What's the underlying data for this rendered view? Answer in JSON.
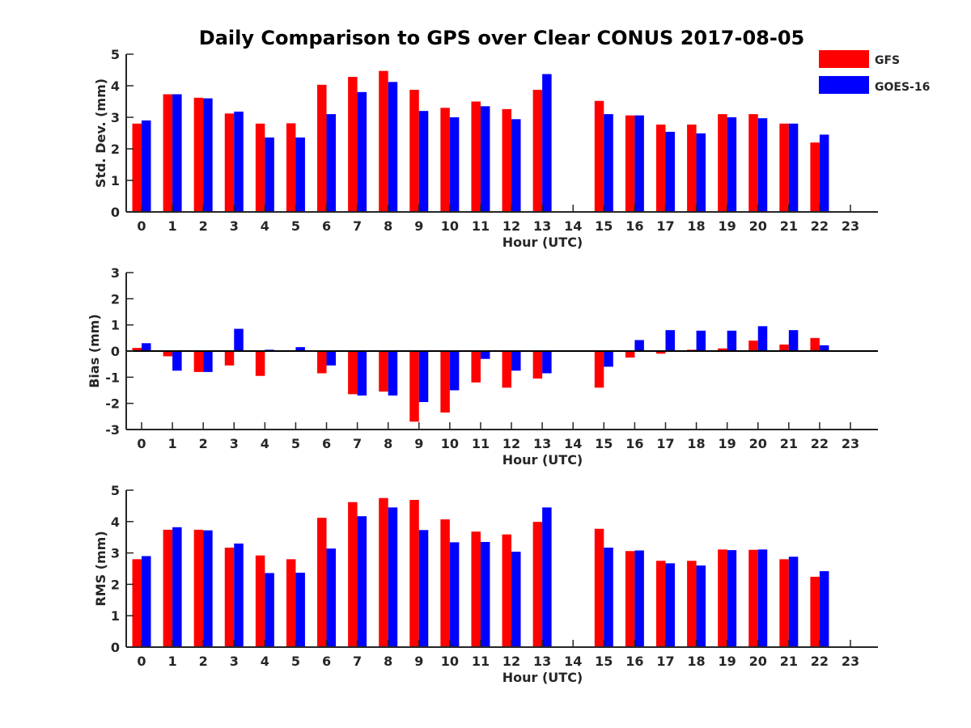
{
  "title": "Daily Comparison to GPS over Clear CONUS 2017-08-05",
  "legend": [
    {
      "label": "GFS",
      "color": "#ff0000"
    },
    {
      "label": "GOES-16",
      "color": "#0000ff"
    }
  ],
  "chart_data": [
    {
      "type": "bar",
      "xlabel": "Hour (UTC)",
      "ylabel": "Std. Dev. (mm)",
      "ylim": [
        0,
        5
      ],
      "yticks": [
        "0",
        "1",
        "2",
        "3",
        "4",
        "5"
      ],
      "categories": [
        "0",
        "1",
        "2",
        "3",
        "4",
        "5",
        "6",
        "7",
        "8",
        "9",
        "10",
        "11",
        "12",
        "13",
        "14",
        "15",
        "16",
        "17",
        "18",
        "19",
        "20",
        "21",
        "22",
        "23"
      ],
      "series": [
        {
          "name": "GFS",
          "color": "#ff0000",
          "values": [
            2.8,
            3.73,
            3.62,
            3.12,
            2.8,
            2.81,
            4.03,
            4.28,
            4.47,
            3.87,
            3.3,
            3.5,
            3.26,
            3.87,
            null,
            3.52,
            3.06,
            2.77,
            2.77,
            3.1,
            3.1,
            2.8,
            2.2,
            null
          ]
        },
        {
          "name": "GOES-16",
          "color": "#0000ff",
          "values": [
            2.9,
            3.73,
            3.6,
            3.18,
            2.36,
            2.36,
            3.1,
            3.8,
            4.12,
            3.2,
            3.0,
            3.35,
            2.94,
            4.37,
            null,
            3.1,
            3.06,
            2.54,
            2.49,
            3.0,
            2.97,
            2.8,
            2.45,
            null
          ]
        }
      ]
    },
    {
      "type": "bar",
      "xlabel": "Hour (UTC)",
      "ylabel": "Bias (mm)",
      "ylim": [
        -3,
        3
      ],
      "yticks": [
        "-3",
        "-2",
        "-1",
        "0",
        "1",
        "2",
        "3"
      ],
      "categories": [
        "0",
        "1",
        "2",
        "3",
        "4",
        "5",
        "6",
        "7",
        "8",
        "9",
        "10",
        "11",
        "12",
        "13",
        "14",
        "15",
        "16",
        "17",
        "18",
        "19",
        "20",
        "21",
        "22",
        "23"
      ],
      "series": [
        {
          "name": "GFS",
          "color": "#ff0000",
          "values": [
            0.12,
            -0.2,
            -0.8,
            -0.55,
            -0.95,
            0.03,
            -0.85,
            -1.65,
            -1.55,
            -2.7,
            -2.35,
            -1.2,
            -1.4,
            -1.05,
            null,
            -1.4,
            -0.25,
            -0.1,
            0.05,
            0.1,
            0.4,
            0.25,
            0.5,
            null
          ]
        },
        {
          "name": "GOES-16",
          "color": "#0000ff",
          "values": [
            0.3,
            -0.75,
            -0.8,
            0.85,
            0.05,
            0.15,
            -0.55,
            -1.7,
            -1.7,
            -1.95,
            -1.5,
            -0.3,
            -0.75,
            -0.85,
            null,
            -0.6,
            0.42,
            0.8,
            0.78,
            0.78,
            0.95,
            0.8,
            0.22,
            null
          ]
        }
      ]
    },
    {
      "type": "bar",
      "xlabel": "Hour (UTC)",
      "ylabel": "RMS (mm)",
      "ylim": [
        0,
        5
      ],
      "yticks": [
        "0",
        "1",
        "2",
        "3",
        "4",
        "5"
      ],
      "categories": [
        "0",
        "1",
        "2",
        "3",
        "4",
        "5",
        "6",
        "7",
        "8",
        "9",
        "10",
        "11",
        "12",
        "13",
        "14",
        "15",
        "16",
        "17",
        "18",
        "19",
        "20",
        "21",
        "22",
        "23"
      ],
      "series": [
        {
          "name": "GFS",
          "color": "#ff0000",
          "values": [
            2.8,
            3.74,
            3.74,
            3.17,
            2.92,
            2.8,
            4.12,
            4.62,
            4.75,
            4.69,
            4.07,
            3.68,
            3.59,
            3.99,
            null,
            3.77,
            3.06,
            2.75,
            2.75,
            3.11,
            3.1,
            2.8,
            2.24,
            null
          ]
        },
        {
          "name": "GOES-16",
          "color": "#0000ff",
          "values": [
            2.9,
            3.82,
            3.72,
            3.3,
            2.36,
            2.37,
            3.14,
            4.17,
            4.45,
            3.73,
            3.34,
            3.35,
            3.04,
            4.45,
            null,
            3.17,
            3.08,
            2.67,
            2.6,
            3.09,
            3.11,
            2.88,
            2.42,
            null
          ]
        }
      ]
    }
  ]
}
